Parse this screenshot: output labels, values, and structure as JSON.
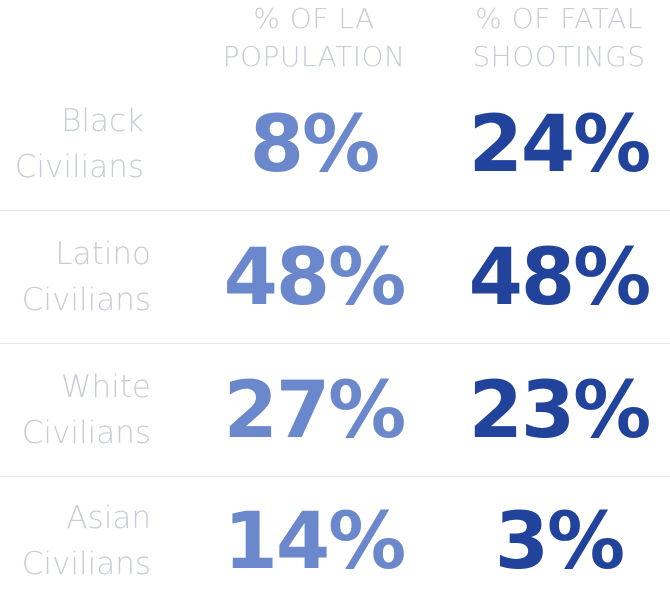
{
  "chart_data": {
    "type": "table",
    "columns": [
      "% OF LA POPULATION",
      "% OF FATAL SHOOTINGS"
    ],
    "column_heads": [
      [
        "% OF LA",
        "POPULATION"
      ],
      [
        "% OF FATAL",
        "SHOOTINGS"
      ]
    ],
    "rows": [
      {
        "label_lines": [
          "Black",
          "Civilians"
        ],
        "population": "8%",
        "fatal": "24%"
      },
      {
        "label_lines": [
          "Latino",
          "Civilians"
        ],
        "population": "48%",
        "fatal": "48%"
      },
      {
        "label_lines": [
          "White",
          "Civilians"
        ],
        "population": "27%",
        "fatal": "23%"
      },
      {
        "label_lines": [
          "Asian",
          "Civilians"
        ],
        "population": "14%",
        "fatal": "3%"
      }
    ],
    "values_population": [
      8,
      48,
      27,
      14
    ],
    "values_fatal": [
      24,
      48,
      23,
      3
    ],
    "colors": {
      "population": "#6a88cb",
      "fatal": "#21439b",
      "labels": "#c7ccd6",
      "divider": "#e8e8ec"
    }
  }
}
